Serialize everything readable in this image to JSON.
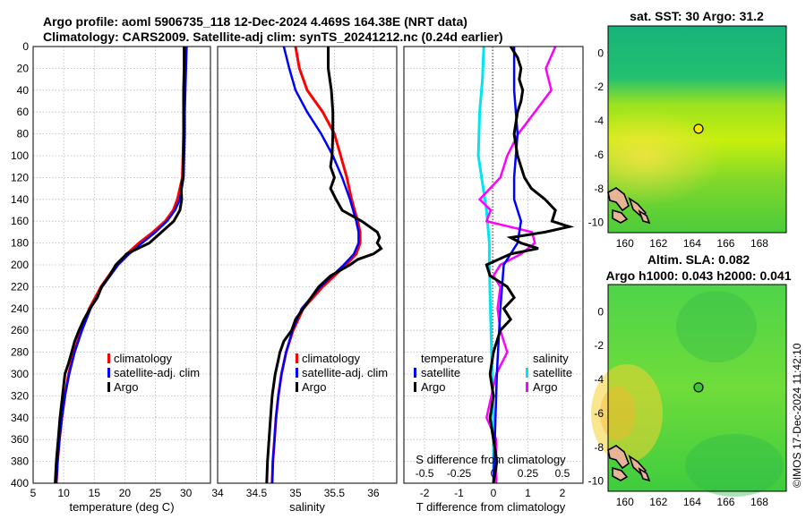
{
  "title_line1": "Argo profile: aoml 5906735_118 12-Dec-2024 4.469S 164.38E (NRT data)",
  "title_line2": "Climatology: CARS2009. Satellite-adj clim: synTS_20241212.nc (0.24d earlier)",
  "watermark": "©IMOS 17-Dec-2024 11:42:10",
  "colors": {
    "climatology": "#ff0000",
    "satellite": "#0000ff",
    "argo": "#000000",
    "sat_salinity": "#00e5ee",
    "argo_salinity": "#ff00ff",
    "land": "#e8b496"
  },
  "chart_data": [
    {
      "type": "line",
      "name": "temperature-panel",
      "xlabel": "temperature (deg C)",
      "ylabel": "",
      "xlim": [
        5,
        34
      ],
      "ylim": [
        400,
        0
      ],
      "xticks": [
        5,
        10,
        15,
        20,
        25,
        30
      ],
      "yticks": [
        0,
        20,
        40,
        60,
        80,
        100,
        120,
        140,
        160,
        180,
        200,
        220,
        240,
        260,
        280,
        300,
        320,
        340,
        360,
        380,
        400
      ],
      "legend": [
        "climatology",
        "satellite-adj. clim",
        "Argo"
      ],
      "series": [
        {
          "name": "climatology",
          "depth": [
            0,
            20,
            40,
            60,
            80,
            100,
            120,
            140,
            150,
            160,
            170,
            180,
            190,
            200,
            220,
            240,
            260,
            280,
            300,
            320,
            340,
            360,
            380,
            400
          ],
          "values": [
            30.0,
            29.9,
            29.8,
            29.7,
            29.6,
            29.5,
            29.4,
            28.6,
            27.9,
            26.6,
            24.6,
            22.3,
            20.3,
            18.6,
            16.1,
            14.2,
            12.9,
            11.7,
            10.8,
            10.2,
            9.7,
            9.3,
            9.0,
            8.8
          ]
        },
        {
          "name": "satellite-adj. clim",
          "depth": [
            0,
            20,
            40,
            60,
            80,
            100,
            120,
            140,
            150,
            160,
            170,
            180,
            190,
            200,
            220,
            240,
            260,
            280,
            300,
            320,
            340,
            360,
            380,
            400
          ],
          "values": [
            30.1,
            30.0,
            29.9,
            29.8,
            29.8,
            29.7,
            29.6,
            29.0,
            28.2,
            26.9,
            25.0,
            22.8,
            20.7,
            18.9,
            16.3,
            14.4,
            13.0,
            11.8,
            10.9,
            10.2,
            9.7,
            9.3,
            9.0,
            8.8
          ]
        },
        {
          "name": "Argo",
          "depth": [
            0,
            20,
            40,
            60,
            80,
            100,
            120,
            130,
            140,
            150,
            160,
            170,
            180,
            190,
            200,
            210,
            220,
            230,
            240,
            250,
            260,
            270,
            280,
            290,
            300,
            320,
            340,
            360,
            380,
            400
          ],
          "values": [
            29.7,
            29.7,
            29.6,
            29.6,
            29.6,
            29.6,
            29.5,
            29.2,
            29.3,
            29.0,
            28.0,
            26.0,
            24.0,
            20.3,
            18.5,
            17.5,
            16.2,
            15.5,
            14.3,
            13.3,
            12.5,
            11.8,
            11.3,
            10.8,
            10.2,
            9.8,
            9.4,
            9.1,
            8.8,
            8.6
          ]
        }
      ]
    },
    {
      "type": "line",
      "name": "salinity-panel",
      "xlabel": "salinity",
      "xlim": [
        34,
        36.3
      ],
      "ylim": [
        400,
        0
      ],
      "xticks": [
        34,
        34.5,
        35,
        35.5,
        36
      ],
      "legend": [
        "climatology",
        "satellite-adj. clim",
        "Argo"
      ],
      "series": [
        {
          "name": "climatology",
          "depth": [
            0,
            20,
            40,
            60,
            80,
            100,
            120,
            140,
            150,
            160,
            170,
            180,
            190,
            200,
            220,
            240,
            260,
            280,
            300,
            320,
            340,
            360,
            380,
            400
          ],
          "values": [
            35.0,
            35.05,
            35.15,
            35.35,
            35.5,
            35.58,
            35.66,
            35.72,
            35.76,
            35.8,
            35.83,
            35.83,
            35.78,
            35.65,
            35.35,
            35.1,
            34.97,
            34.88,
            34.82,
            34.78,
            34.75,
            34.73,
            34.71,
            34.7
          ]
        },
        {
          "name": "satellite-adj. clim",
          "depth": [
            0,
            20,
            40,
            60,
            80,
            100,
            120,
            140,
            150,
            160,
            170,
            180,
            190,
            200,
            220,
            240,
            260,
            280,
            300,
            320,
            340,
            360,
            380,
            400
          ],
          "values": [
            34.85,
            34.92,
            35.0,
            35.15,
            35.33,
            35.48,
            35.6,
            35.7,
            35.74,
            35.78,
            35.81,
            35.81,
            35.75,
            35.62,
            35.32,
            35.08,
            34.96,
            34.88,
            34.82,
            34.78,
            34.75,
            34.73,
            34.71,
            34.7
          ]
        },
        {
          "name": "Argo",
          "depth": [
            0,
            20,
            40,
            60,
            80,
            100,
            110,
            120,
            130,
            140,
            150,
            160,
            170,
            175,
            180,
            185,
            190,
            195,
            200,
            210,
            220,
            230,
            240,
            250,
            260,
            270,
            280,
            290,
            300,
            320,
            340,
            360,
            380,
            400
          ],
          "values": [
            35.42,
            35.42,
            35.46,
            35.48,
            35.48,
            35.47,
            35.45,
            35.5,
            35.45,
            35.52,
            35.6,
            35.85,
            36.05,
            36.08,
            36.05,
            36.1,
            36.0,
            35.8,
            35.7,
            35.45,
            35.3,
            35.2,
            35.1,
            35.0,
            34.95,
            34.85,
            34.8,
            34.77,
            34.74,
            34.7,
            34.68,
            34.66,
            34.64,
            34.63
          ]
        }
      ]
    },
    {
      "type": "line",
      "name": "difference-panel",
      "xlabel": "T difference from climatology",
      "top_axis_label": "S difference from climatology",
      "xlim": [
        -2.6,
        2.6
      ],
      "ylim": [
        400,
        0
      ],
      "xticks": [
        -2,
        -1,
        0,
        1,
        2
      ],
      "top_xticks": [
        -0.5,
        -0.25,
        0,
        0.25,
        0.5
      ],
      "legend_temperature_title": "temperature",
      "legend_salinity_title": "salinity",
      "legend_labels": [
        "satellite",
        "Argo",
        "satellite",
        "Argo"
      ],
      "series": [
        {
          "name": "T satellite",
          "depth": [
            0,
            40,
            80,
            120,
            140,
            160,
            180,
            200,
            240,
            300,
            400
          ],
          "values": [
            0.6,
            0.6,
            0.7,
            0.6,
            0.6,
            0.8,
            0.7,
            0.3,
            0.2,
            0.1,
            0.0
          ]
        },
        {
          "name": "T Argo",
          "depth": [
            0,
            10,
            20,
            30,
            40,
            50,
            60,
            80,
            100,
            120,
            130,
            140,
            150,
            160,
            165,
            170,
            175,
            180,
            185,
            190,
            200,
            210,
            220,
            230,
            240,
            250,
            260,
            270,
            280,
            300,
            320,
            340,
            360,
            380,
            400
          ],
          "values": [
            0.5,
            0.7,
            0.8,
            0.75,
            0.85,
            0.8,
            0.7,
            0.6,
            0.7,
            0.9,
            1.1,
            1.5,
            1.8,
            1.7,
            2.2,
            1.5,
            0.5,
            0.8,
            1.3,
            0.5,
            -0.2,
            -0.1,
            0.4,
            0.6,
            0.3,
            0.5,
            0.2,
            0.1,
            0.0,
            -0.1,
            0.0,
            -0.1,
            0.0,
            0.1,
            0.0
          ]
        },
        {
          "name": "S satellite",
          "depth": [
            0,
            30,
            60,
            100,
            150,
            180,
            200,
            250,
            300,
            350,
            400
          ],
          "values": [
            -0.07,
            -0.08,
            -0.1,
            -0.11,
            -0.05,
            -0.03,
            -0.03,
            -0.02,
            -0.01,
            0.0,
            0.0
          ]
        },
        {
          "name": "S Argo",
          "depth": [
            0,
            20,
            40,
            60,
            80,
            100,
            120,
            140,
            150,
            160,
            170,
            180,
            190,
            200,
            210,
            220,
            240,
            260,
            280,
            300,
            340,
            360,
            400
          ],
          "values": [
            0.45,
            0.38,
            0.42,
            0.3,
            0.18,
            0.1,
            0.05,
            -0.1,
            -0.02,
            -0.05,
            0.28,
            0.3,
            0.2,
            0.05,
            0.0,
            0.05,
            0.03,
            0.05,
            0.1,
            0.02,
            -0.05,
            0.02,
            0.02
          ]
        }
      ]
    },
    {
      "type": "heatmap",
      "name": "sst-map",
      "title": "sat. SST: 30 Argo: 31.2",
      "xticks": [
        160,
        162,
        164,
        166,
        168
      ],
      "yticks": [
        0,
        -2,
        -4,
        -6,
        -8,
        -10
      ],
      "marker_lon": 164.38,
      "marker_lat": -4.469
    },
    {
      "type": "heatmap",
      "name": "sla-map",
      "title_line1": "Altim. SLA: 0.082",
      "title_line2": "Argo h1000: 0.043 h2000: 0.041",
      "xticks": [
        160,
        162,
        164,
        166,
        168
      ],
      "yticks": [
        0,
        -2,
        -4,
        -6,
        -8,
        -10
      ],
      "marker_lon": 164.38,
      "marker_lat": -4.469
    }
  ]
}
